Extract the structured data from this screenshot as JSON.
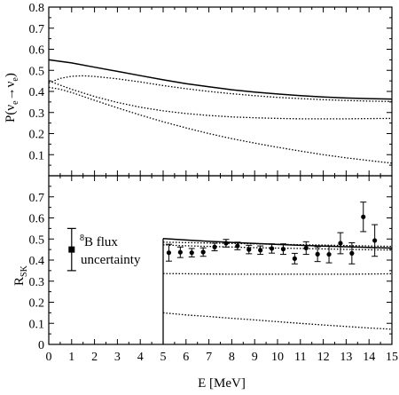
{
  "chart_data": {
    "type": "line",
    "xlabel": "E  [MeV]",
    "xlim": [
      0,
      15
    ],
    "x_ticks": [
      "0",
      "1",
      "2",
      "3",
      "4",
      "5",
      "6",
      "7",
      "8",
      "9",
      "10",
      "11",
      "12",
      "13",
      "14",
      "15"
    ],
    "panels": [
      {
        "name": "top",
        "ylabel": "P(νe→νe)",
        "ylabel_parts": {
          "main": "P(ν",
          "sub1": "e",
          "arrow": "→ν",
          "sub2": "e",
          "close": ")"
        },
        "ylim": [
          0,
          0.8
        ],
        "y_ticks": [
          "0.1",
          "0.2",
          "0.3",
          "0.4",
          "0.5",
          "0.6",
          "0.7",
          "0.8"
        ],
        "series": [
          {
            "style": "solid",
            "x": [
              0,
              1,
              2,
              3,
              4,
              5,
              6,
              7,
              8,
              9,
              10,
              11,
              12,
              13,
              14,
              15
            ],
            "y": [
              0.55,
              0.535,
              0.515,
              0.495,
              0.475,
              0.455,
              0.437,
              0.422,
              0.408,
              0.397,
              0.388,
              0.38,
              0.374,
              0.369,
              0.366,
              0.364
            ]
          },
          {
            "style": "dotted",
            "x": [
              0,
              0.5,
              1,
              1.5,
              2,
              3,
              4,
              5,
              6,
              7,
              8,
              9,
              10,
              11,
              12,
              13,
              14,
              15
            ],
            "y": [
              0.44,
              0.462,
              0.472,
              0.474,
              0.471,
              0.46,
              0.445,
              0.428,
              0.413,
              0.4,
              0.389,
              0.38,
              0.372,
              0.366,
              0.361,
              0.357,
              0.354,
              0.352
            ]
          },
          {
            "style": "dotted",
            "x": [
              0,
              0.5,
              1,
              2,
              3,
              4,
              5,
              6,
              7,
              8,
              9,
              10,
              11,
              12,
              13,
              14,
              15
            ],
            "y": [
              0.45,
              0.43,
              0.41,
              0.376,
              0.348,
              0.325,
              0.308,
              0.295,
              0.286,
              0.279,
              0.275,
              0.272,
              0.27,
              0.27,
              0.27,
              0.271,
              0.272
            ]
          },
          {
            "style": "dotted",
            "x": [
              0,
              0.5,
              1,
              2,
              3,
              4,
              5,
              6,
              7,
              8,
              9,
              10,
              11,
              12,
              13,
              14,
              15
            ],
            "y": [
              0.42,
              0.41,
              0.395,
              0.358,
              0.322,
              0.288,
              0.256,
              0.227,
              0.2,
              0.176,
              0.155,
              0.135,
              0.117,
              0.1,
              0.085,
              0.072,
              0.06
            ]
          }
        ]
      },
      {
        "name": "bottom",
        "ylabel": "RSK",
        "ylabel_parts": {
          "main": "R",
          "sub": "SK"
        },
        "ylim": [
          0,
          0.8
        ],
        "y_ticks": [
          "0",
          "0.1",
          "0.2",
          "0.3",
          "0.4",
          "0.5",
          "0.6",
          "0.7"
        ],
        "series": [
          {
            "style": "solid",
            "x": [
              5,
              6,
              7,
              8,
              9,
              10,
              11,
              12,
              13,
              14,
              15
            ],
            "y": [
              0.502,
              0.495,
              0.489,
              0.484,
              0.479,
              0.474,
              0.47,
              0.466,
              0.463,
              0.46,
              0.457
            ]
          },
          {
            "style": "dotted",
            "x": [
              5,
              6,
              7,
              8,
              9,
              10,
              11,
              12,
              13,
              14,
              15
            ],
            "y": [
              0.485,
              0.483,
              0.481,
              0.479,
              0.477,
              0.475,
              0.473,
              0.471,
              0.469,
              0.467,
              0.465
            ]
          },
          {
            "style": "dotted",
            "x": [
              5,
              6,
              7,
              8,
              9,
              10,
              11,
              12,
              13,
              14,
              15
            ],
            "y": [
              0.472,
              0.468,
              0.465,
              0.462,
              0.459,
              0.457,
              0.455,
              0.453,
              0.451,
              0.449,
              0.448
            ]
          },
          {
            "style": "dotted",
            "x": [
              5,
              6,
              7,
              8,
              9,
              10,
              11,
              12,
              13,
              14,
              15
            ],
            "y": [
              0.336,
              0.335,
              0.334,
              0.333,
              0.333,
              0.333,
              0.333,
              0.333,
              0.333,
              0.334,
              0.335
            ]
          },
          {
            "style": "dotted",
            "x": [
              5,
              6,
              7,
              8,
              9,
              10,
              11,
              12,
              13,
              14,
              15
            ],
            "y": [
              0.15,
              0.14,
              0.132,
              0.124,
              0.116,
              0.108,
              0.1,
              0.092,
              0.085,
              0.078,
              0.072
            ]
          }
        ],
        "data_points": [
          {
            "x": 5.25,
            "y": 0.435,
            "err": 0.04
          },
          {
            "x": 5.75,
            "y": 0.437,
            "err": 0.025
          },
          {
            "x": 6.25,
            "y": 0.435,
            "err": 0.02
          },
          {
            "x": 6.75,
            "y": 0.438,
            "err": 0.02
          },
          {
            "x": 7.25,
            "y": 0.462,
            "err": 0.018
          },
          {
            "x": 7.75,
            "y": 0.48,
            "err": 0.018
          },
          {
            "x": 8.25,
            "y": 0.467,
            "err": 0.018
          },
          {
            "x": 8.75,
            "y": 0.45,
            "err": 0.02
          },
          {
            "x": 9.25,
            "y": 0.447,
            "err": 0.02
          },
          {
            "x": 9.75,
            "y": 0.455,
            "err": 0.022
          },
          {
            "x": 10.25,
            "y": 0.452,
            "err": 0.025
          },
          {
            "x": 10.75,
            "y": 0.407,
            "err": 0.025
          },
          {
            "x": 11.25,
            "y": 0.457,
            "err": 0.03
          },
          {
            "x": 11.75,
            "y": 0.428,
            "err": 0.035
          },
          {
            "x": 12.25,
            "y": 0.427,
            "err": 0.04
          },
          {
            "x": 12.75,
            "y": 0.48,
            "err": 0.05
          },
          {
            "x": 13.25,
            "y": 0.432,
            "err": 0.05
          },
          {
            "x": 13.75,
            "y": 0.605,
            "err": 0.07
          },
          {
            "x": 14.25,
            "y": 0.493,
            "err": 0.075
          }
        ],
        "flux_marker": {
          "x": 1,
          "y": 0.45,
          "err": 0.1
        },
        "flux_label_sup": "8",
        "flux_label_line1": "B flux",
        "flux_label_line2": "uncertainty",
        "threshold_x": 5
      }
    ]
  }
}
